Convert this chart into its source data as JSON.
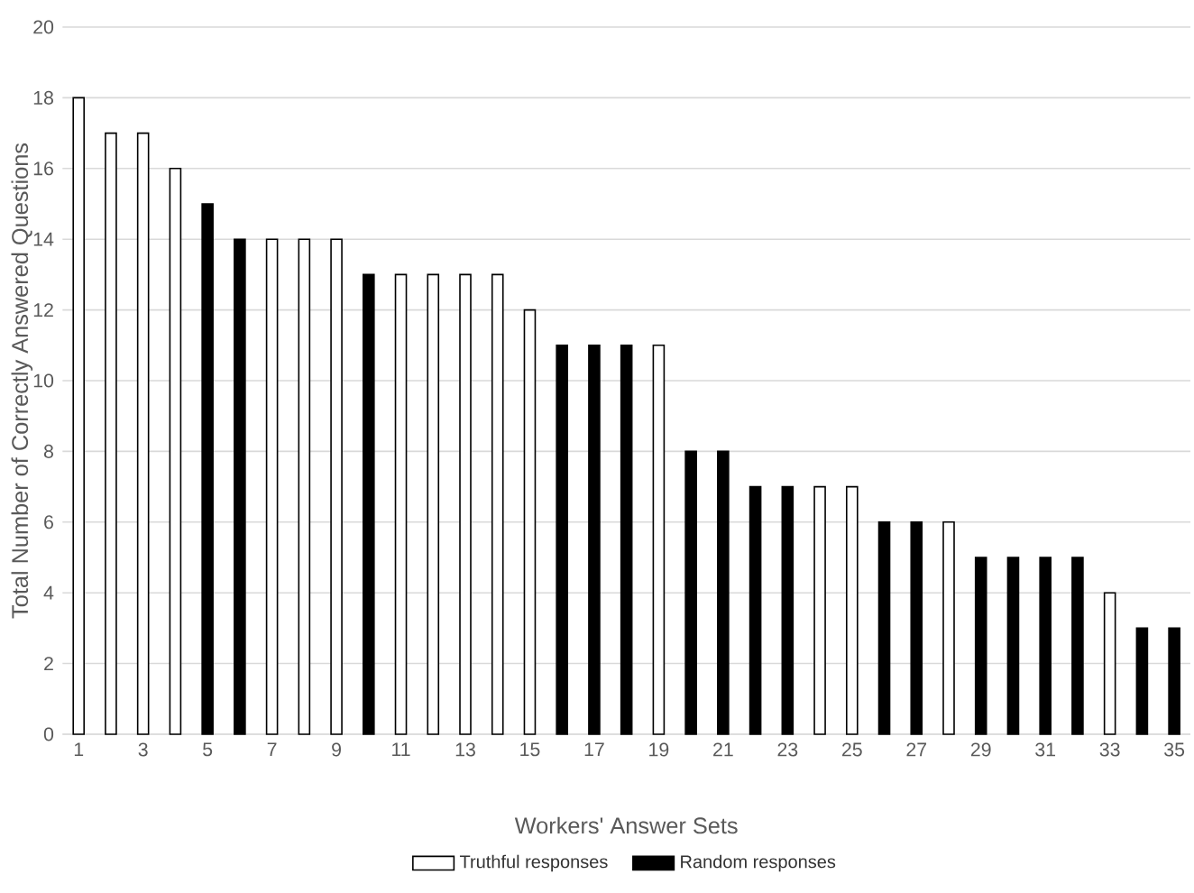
{
  "chart_data": {
    "type": "bar",
    "xlabel": "Workers' Answer Sets",
    "ylabel": "Total Number of Correctly Answered Questions",
    "categories": [
      "1",
      null,
      "3",
      null,
      "5",
      null,
      "7",
      null,
      "9",
      null,
      "11",
      null,
      "13",
      null,
      "15",
      null,
      "17",
      null,
      "19",
      null,
      "21",
      null,
      "23",
      null,
      "25",
      null,
      "27",
      null,
      "29",
      null,
      "31",
      null,
      "33",
      null,
      "35"
    ],
    "series": [
      {
        "name": "Truthful responses",
        "color": "#ffffff",
        "values": [
          18,
          17,
          17,
          16,
          null,
          null,
          14,
          14,
          14,
          null,
          13,
          13,
          13,
          13,
          12,
          null,
          null,
          null,
          11,
          null,
          null,
          null,
          null,
          7,
          7,
          null,
          null,
          6,
          null,
          null,
          null,
          null,
          4,
          null,
          null
        ]
      },
      {
        "name": "Random responses",
        "color": "#000000",
        "values": [
          null,
          null,
          null,
          null,
          15,
          14,
          null,
          null,
          null,
          13,
          null,
          null,
          null,
          null,
          null,
          11,
          11,
          11,
          null,
          8,
          8,
          7,
          7,
          null,
          null,
          6,
          6,
          null,
          5,
          5,
          5,
          5,
          null,
          3,
          3
        ]
      }
    ],
    "ylim": [
      0,
      20
    ],
    "yticks": [
      0,
      2,
      4,
      6,
      8,
      10,
      12,
      14,
      16,
      18,
      20
    ],
    "grid": "y",
    "legend": "bottom"
  }
}
